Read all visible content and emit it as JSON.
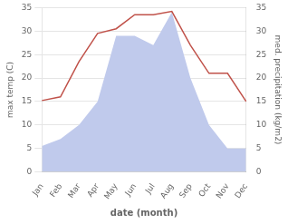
{
  "chart_data": {
    "type": "line",
    "xlabel": "date (month)",
    "ylabel": "max temp (C)",
    "y2label": "med. precipitation (kg/m2)",
    "categories": [
      "Jan",
      "Feb",
      "Mar",
      "Apr",
      "May",
      "Jun",
      "Jul",
      "Aug",
      "Sep",
      "Oct",
      "Nov",
      "Dec"
    ],
    "series": [
      {
        "type": "area",
        "color": "#c0caec",
        "values": [
          5.5,
          7.0,
          10.0,
          15.0,
          29.0,
          29.0,
          27.0,
          34.0,
          20.0,
          10.0,
          5.0,
          5.0
        ]
      },
      {
        "type": "line",
        "color": "#c0524a",
        "axis": "y2",
        "values": [
          15.2,
          16.0,
          23.5,
          29.5,
          30.5,
          33.5,
          33.5,
          34.2,
          27.0,
          21.0,
          21.0,
          15.0
        ]
      }
    ],
    "ylim": [
      0,
      35
    ],
    "yticks": [
      0,
      5,
      10,
      15,
      20,
      25,
      30,
      35
    ],
    "y2lim": [
      0,
      35
    ],
    "y2ticks": [
      0,
      5,
      10,
      15,
      20,
      25,
      30,
      35
    ],
    "grid": true
  }
}
